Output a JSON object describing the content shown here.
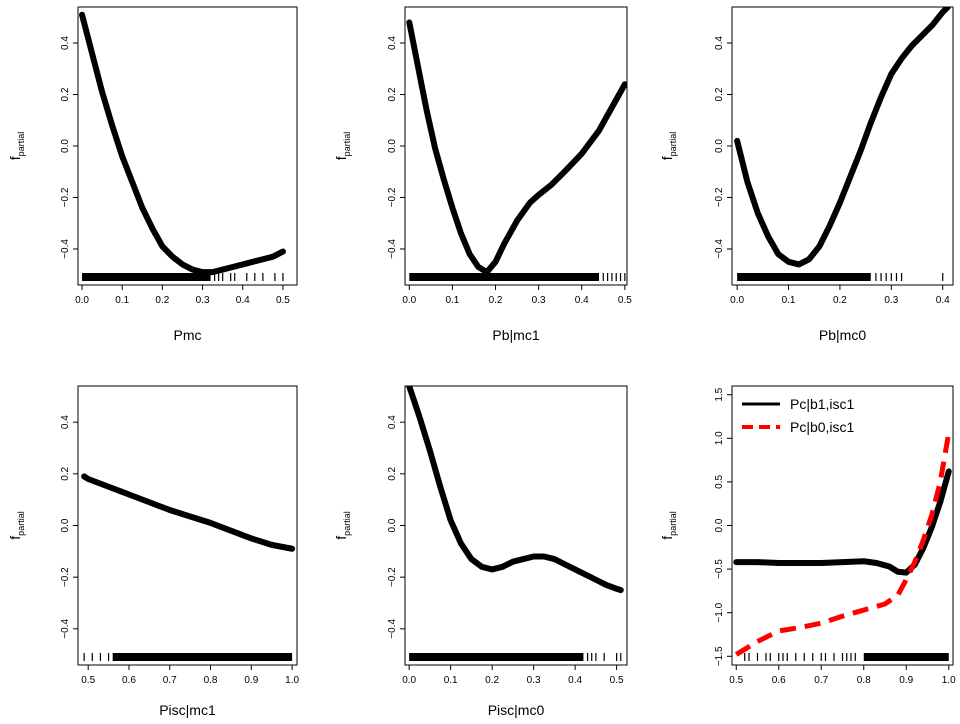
{
  "chart_data": [
    {
      "type": "line",
      "xlabel": "Pmc",
      "ylabel_main": "f",
      "ylabel_sub": "partial",
      "xlim": [
        -0.01,
        0.535
      ],
      "ylim": [
        -0.54,
        0.54
      ],
      "xticks": [
        0.0,
        0.1,
        0.2,
        0.3,
        0.4,
        0.5
      ],
      "xtick_labels": [
        "0.0",
        "0.1",
        "0.2",
        "0.3",
        "0.4",
        "0.5"
      ],
      "yticks": [
        -0.4,
        -0.2,
        0.0,
        0.2,
        0.4
      ],
      "ytick_labels": [
        "-0.4",
        "-0.2",
        "0.0",
        "0.2",
        "0.4"
      ],
      "rug": {
        "dense": [
          0.0,
          0.32
        ],
        "extra": [
          0.33,
          0.34,
          0.35,
          0.37,
          0.38,
          0.41,
          0.43,
          0.45,
          0.48,
          0.5
        ]
      },
      "series": [
        {
          "style": "solid",
          "color": "#000000",
          "x": [
            0.0,
            0.025,
            0.05,
            0.075,
            0.1,
            0.125,
            0.15,
            0.175,
            0.2,
            0.225,
            0.25,
            0.275,
            0.3,
            0.325,
            0.35,
            0.375,
            0.4,
            0.425,
            0.45,
            0.475,
            0.5
          ],
          "y": [
            0.51,
            0.36,
            0.21,
            0.08,
            -0.04,
            -0.14,
            -0.24,
            -0.32,
            -0.39,
            -0.43,
            -0.46,
            -0.48,
            -0.49,
            -0.49,
            -0.48,
            -0.47,
            -0.46,
            -0.45,
            -0.44,
            -0.43,
            -0.41
          ]
        }
      ]
    },
    {
      "type": "line",
      "xlabel": "Pb|mc1",
      "ylabel_main": "f",
      "ylabel_sub": "partial",
      "xlim": [
        -0.01,
        0.505
      ],
      "ylim": [
        -0.54,
        0.54
      ],
      "xticks": [
        0.0,
        0.1,
        0.2,
        0.3,
        0.4,
        0.5
      ],
      "xtick_labels": [
        "0.0",
        "0.1",
        "0.2",
        "0.3",
        "0.4",
        "0.5"
      ],
      "yticks": [
        -0.4,
        -0.2,
        0.0,
        0.2,
        0.4
      ],
      "ytick_labels": [
        "-0.4",
        "-0.2",
        "0.0",
        "0.2",
        "0.4"
      ],
      "rug": {
        "dense": [
          0.0,
          0.44
        ],
        "extra": [
          0.45,
          0.46,
          0.47,
          0.48,
          0.49,
          0.5
        ]
      },
      "series": [
        {
          "style": "solid",
          "color": "#000000",
          "x": [
            0.0,
            0.02,
            0.04,
            0.06,
            0.08,
            0.1,
            0.12,
            0.14,
            0.16,
            0.18,
            0.2,
            0.22,
            0.25,
            0.28,
            0.3,
            0.33,
            0.36,
            0.4,
            0.44,
            0.47,
            0.5
          ],
          "y": [
            0.48,
            0.31,
            0.14,
            -0.01,
            -0.13,
            -0.24,
            -0.34,
            -0.42,
            -0.47,
            -0.49,
            -0.45,
            -0.38,
            -0.29,
            -0.22,
            -0.19,
            -0.15,
            -0.1,
            -0.03,
            0.06,
            0.15,
            0.24
          ]
        }
      ]
    },
    {
      "type": "line",
      "xlabel": "Pb|mc0",
      "ylabel_main": "f",
      "ylabel_sub": "partial",
      "xlim": [
        -0.01,
        0.42
      ],
      "ylim": [
        -0.54,
        0.54
      ],
      "xticks": [
        0.0,
        0.1,
        0.2,
        0.3,
        0.4
      ],
      "xtick_labels": [
        "0.0",
        "0.1",
        "0.2",
        "0.3",
        "0.4"
      ],
      "yticks": [
        -0.4,
        -0.2,
        0.0,
        0.2,
        0.4
      ],
      "ytick_labels": [
        "-0.4",
        "-0.2",
        "0.0",
        "0.2",
        "0.4"
      ],
      "rug": {
        "dense": [
          0.0,
          0.26
        ],
        "extra": [
          0.27,
          0.28,
          0.29,
          0.3,
          0.31,
          0.32,
          0.4
        ]
      },
      "series": [
        {
          "style": "solid",
          "color": "#000000",
          "x": [
            0.0,
            0.01,
            0.02,
            0.04,
            0.06,
            0.08,
            0.1,
            0.12,
            0.14,
            0.16,
            0.18,
            0.2,
            0.22,
            0.24,
            0.26,
            0.28,
            0.3,
            0.32,
            0.34,
            0.36,
            0.38,
            0.4,
            0.41
          ],
          "y": [
            0.02,
            -0.06,
            -0.14,
            -0.26,
            -0.35,
            -0.42,
            -0.45,
            -0.46,
            -0.44,
            -0.39,
            -0.31,
            -0.22,
            -0.12,
            -0.02,
            0.09,
            0.19,
            0.28,
            0.34,
            0.39,
            0.43,
            0.47,
            0.52,
            0.54
          ]
        }
      ]
    },
    {
      "type": "line",
      "xlabel": "Pisc|mc1",
      "ylabel_main": "f",
      "ylabel_sub": "partial",
      "xlim": [
        0.475,
        1.012
      ],
      "ylim": [
        -0.54,
        0.54
      ],
      "xticks": [
        0.5,
        0.6,
        0.7,
        0.8,
        0.9,
        1.0
      ],
      "xtick_labels": [
        "0.5",
        "0.6",
        "0.7",
        "0.8",
        "0.9",
        "1.0"
      ],
      "yticks": [
        -0.4,
        -0.2,
        0.0,
        0.2,
        0.4
      ],
      "ytick_labels": [
        "-0.4",
        "-0.2",
        "0.0",
        "0.2",
        "0.4"
      ],
      "rug": {
        "dense": [
          0.56,
          1.0
        ],
        "extra": [
          0.49,
          0.51,
          0.53,
          0.55
        ]
      },
      "series": [
        {
          "style": "solid",
          "color": "#000000",
          "x": [
            0.49,
            0.5,
            0.55,
            0.6,
            0.65,
            0.7,
            0.75,
            0.8,
            0.85,
            0.9,
            0.95,
            1.0
          ],
          "y": [
            0.19,
            0.18,
            0.15,
            0.12,
            0.09,
            0.06,
            0.035,
            0.01,
            -0.02,
            -0.05,
            -0.075,
            -0.09
          ]
        }
      ]
    },
    {
      "type": "line",
      "xlabel": "Pisc|mc0",
      "ylabel_main": "f",
      "ylabel_sub": "partial",
      "xlim": [
        -0.01,
        0.525
      ],
      "ylim": [
        -0.54,
        0.54
      ],
      "xticks": [
        0.0,
        0.1,
        0.2,
        0.3,
        0.4,
        0.5
      ],
      "xtick_labels": [
        "0.0",
        "0.1",
        "0.2",
        "0.3",
        "0.4",
        "0.5"
      ],
      "yticks": [
        -0.4,
        -0.2,
        0.0,
        0.2,
        0.4
      ],
      "ytick_labels": [
        "-0.4",
        "-0.2",
        "0.0",
        "0.2",
        "0.4"
      ],
      "rug": {
        "dense": [
          0.0,
          0.42
        ],
        "extra": [
          0.43,
          0.44,
          0.45,
          0.47,
          0.5,
          0.51
        ]
      },
      "series": [
        {
          "style": "solid",
          "color": "#000000",
          "x": [
            0.0,
            0.025,
            0.05,
            0.075,
            0.1,
            0.125,
            0.15,
            0.175,
            0.2,
            0.225,
            0.25,
            0.275,
            0.3,
            0.325,
            0.35,
            0.375,
            0.4,
            0.425,
            0.45,
            0.475,
            0.5,
            0.51
          ],
          "y": [
            0.54,
            0.42,
            0.29,
            0.15,
            0.02,
            -0.07,
            -0.13,
            -0.16,
            -0.17,
            -0.16,
            -0.14,
            -0.13,
            -0.12,
            -0.12,
            -0.13,
            -0.15,
            -0.17,
            -0.19,
            -0.21,
            -0.23,
            -0.245,
            -0.25
          ]
        }
      ]
    },
    {
      "type": "line",
      "xlabel": "",
      "ylabel_main": "f",
      "ylabel_sub": "partial",
      "xlim": [
        0.49,
        1.01
      ],
      "ylim": [
        -1.6,
        1.6
      ],
      "xticks": [
        0.5,
        0.6,
        0.7,
        0.8,
        0.9,
        1.0
      ],
      "xtick_labels": [
        "0.5",
        "0.6",
        "0.7",
        "0.8",
        "0.9",
        "1.0"
      ],
      "yticks": [
        -1.5,
        -1.0,
        -0.5,
        0.0,
        0.5,
        1.0,
        1.5
      ],
      "ytick_labels": [
        "-1.5",
        "-1.0",
        "-0.5",
        "0.0",
        "0.5",
        "1.0",
        "1.5"
      ],
      "rug": {
        "dense": [
          0.8,
          1.0
        ],
        "extra": [
          0.52,
          0.53,
          0.55,
          0.57,
          0.58,
          0.6,
          0.61,
          0.62,
          0.64,
          0.66,
          0.68,
          0.7,
          0.71,
          0.73,
          0.75,
          0.76,
          0.77,
          0.78
        ]
      },
      "legend": {
        "position": "top-left"
      },
      "series": [
        {
          "name": "Pc|b1,isc1",
          "style": "solid",
          "color": "#000000",
          "x": [
            0.5,
            0.55,
            0.6,
            0.65,
            0.7,
            0.75,
            0.8,
            0.83,
            0.86,
            0.88,
            0.9,
            0.92,
            0.94,
            0.96,
            0.98,
            1.0
          ],
          "y": [
            -0.42,
            -0.42,
            -0.43,
            -0.43,
            -0.43,
            -0.42,
            -0.41,
            -0.43,
            -0.47,
            -0.53,
            -0.54,
            -0.45,
            -0.26,
            -0.02,
            0.27,
            0.62
          ]
        },
        {
          "name": "Pc|b0,isc1",
          "style": "dashed",
          "color": "#ff0000",
          "x": [
            0.5,
            0.52,
            0.55,
            0.6,
            0.65,
            0.7,
            0.75,
            0.8,
            0.85,
            0.88,
            0.9,
            0.92,
            0.94,
            0.96,
            0.98,
            1.0
          ],
          "y": [
            -1.48,
            -1.42,
            -1.33,
            -1.21,
            -1.17,
            -1.12,
            -1.04,
            -0.97,
            -0.9,
            -0.8,
            -0.62,
            -0.42,
            -0.17,
            0.12,
            0.5,
            1.06
          ]
        }
      ]
    }
  ]
}
